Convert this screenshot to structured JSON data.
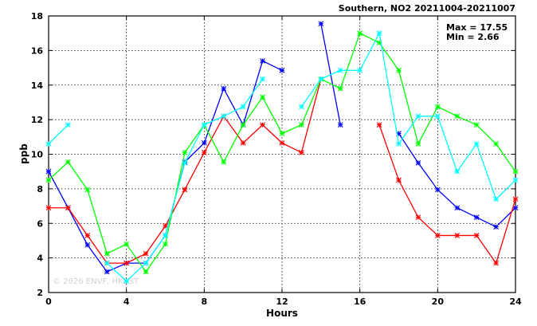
{
  "chart_data": {
    "type": "line",
    "title": "Southern, NO2 20211004-20211007",
    "xlabel": "Hours",
    "ylabel": "ppb",
    "xlim": [
      0,
      24
    ],
    "ylim": [
      2,
      18
    ],
    "xticks": [
      0,
      4,
      8,
      12,
      16,
      20,
      24
    ],
    "yticks": [
      2,
      4,
      6,
      8,
      10,
      12,
      14,
      16,
      18
    ],
    "grid": true,
    "stats": {
      "max_label": "Max = 17.55",
      "min_label": "Min =  2.66"
    },
    "watermark": "© 2026  ENVF, HKUST",
    "x": [
      0,
      1,
      2,
      3,
      4,
      5,
      6,
      7,
      8,
      9,
      10,
      11,
      12,
      13,
      14,
      15,
      16,
      17,
      18,
      19,
      20,
      21,
      22,
      23,
      24
    ],
    "series": [
      {
        "color": "#0000ff",
        "values": [
          9.0,
          6.9,
          4.75,
          3.2,
          3.7,
          3.7,
          5.3,
          9.55,
          10.65,
          13.8,
          11.7,
          15.4,
          14.85,
          null,
          17.55,
          11.7,
          null,
          null,
          11.2,
          9.5,
          7.95,
          6.9,
          6.35,
          5.8,
          6.9
        ]
      },
      {
        "color": "#ff0000",
        "values": [
          6.9,
          6.9,
          5.3,
          3.7,
          3.7,
          4.25,
          5.85,
          7.95,
          10.1,
          12.2,
          10.65,
          11.7,
          10.65,
          10.1,
          14.35,
          null,
          null,
          11.7,
          8.5,
          6.35,
          5.3,
          5.3,
          5.3,
          3.7,
          7.4
        ]
      },
      {
        "color": "#00ff00",
        "values": [
          8.5,
          9.55,
          7.95,
          4.25,
          4.8,
          3.2,
          4.8,
          10.1,
          11.7,
          9.55,
          11.7,
          13.3,
          11.2,
          11.7,
          14.35,
          13.8,
          17.0,
          16.45,
          14.85,
          10.6,
          12.75,
          12.2,
          11.7,
          10.6,
          9.0
        ]
      },
      {
        "color": "#00ffff",
        "values": [
          10.6,
          11.7,
          null,
          3.7,
          2.66,
          3.7,
          5.3,
          9.5,
          11.7,
          12.2,
          12.75,
          14.35,
          null,
          12.75,
          14.35,
          14.85,
          14.85,
          17.0,
          10.6,
          12.2,
          12.2,
          9.0,
          10.6,
          7.4,
          8.5
        ]
      }
    ]
  }
}
